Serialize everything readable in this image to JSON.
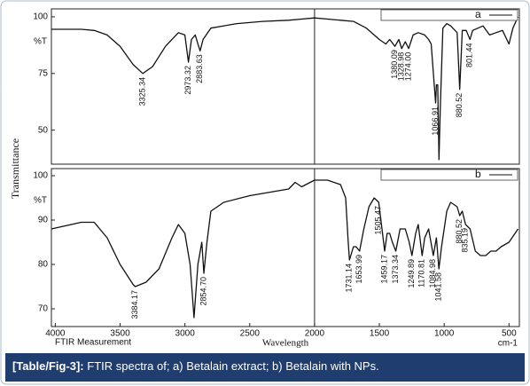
{
  "shared_ylabel": "Transmittance",
  "caption": {
    "label": "[Table/Fig-3]:",
    "text": " FTIR spectra of; a) Betalain extract; b) Betalain with NPs."
  },
  "chart_data": [
    {
      "type": "line",
      "ylabel": "%T",
      "xlim": [
        4030,
        420
      ],
      "ylim": [
        35,
        103.5
      ],
      "yticks": [
        50,
        75,
        100
      ],
      "vline": 2000,
      "x": [
        4030,
        3800,
        3700,
        3600,
        3500,
        3400,
        3325,
        3250,
        3150,
        3050,
        3000,
        2973,
        2950,
        2920,
        2900,
        2883,
        2860,
        2800,
        2600,
        2400,
        2200,
        2100,
        2000,
        1900,
        1800,
        1700,
        1600,
        1500,
        1450,
        1420,
        1380,
        1350,
        1328,
        1300,
        1274,
        1240,
        1200,
        1150,
        1120,
        1100,
        1066,
        1060,
        1050,
        1040,
        1030,
        1010,
        980,
        950,
        900,
        880,
        860,
        830,
        801,
        780,
        700,
        650,
        600,
        550,
        500,
        470,
        430
      ],
      "series": [
        {
          "name": "a",
          "color": "#111111",
          "values": [
            94.5,
            94.5,
            94,
            92,
            87,
            79,
            75,
            78,
            87,
            93,
            92,
            80,
            90,
            92,
            88,
            85,
            90,
            95,
            97,
            98,
            98.5,
            99,
            99.5,
            99,
            98.5,
            98,
            95,
            90,
            88,
            90,
            87,
            90,
            86,
            89,
            86,
            92,
            93,
            92,
            90,
            88,
            62,
            70,
            70,
            37,
            60,
            95,
            97,
            96,
            93,
            68,
            94,
            94,
            90,
            94,
            96,
            92,
            93,
            94,
            88,
            95,
            100
          ]
        }
      ],
      "annotations": [
        {
          "label": "3325.34",
          "x": 3325.34,
          "y": 75
        },
        {
          "label": "2973.32",
          "x": 2973.32,
          "y": 80
        },
        {
          "label": "2883.63",
          "x": 2883.63,
          "y": 85
        },
        {
          "label": "1380.09",
          "x": 1380.09,
          "y": 87
        },
        {
          "label": "1328.98",
          "x": 1328.98,
          "y": 86
        },
        {
          "label": "1274.00",
          "x": 1274.0,
          "y": 86
        },
        {
          "label": "1066.91",
          "x": 1066.91,
          "y": 62
        },
        {
          "label": "880.52",
          "x": 880.52,
          "y": 68
        },
        {
          "label": "801.44",
          "x": 801.44,
          "y": 90
        }
      ]
    },
    {
      "type": "line",
      "ylabel": "%T",
      "xlim": [
        4030,
        420
      ],
      "ylim": [
        66,
        101.6
      ],
      "yticks": [
        70,
        80,
        90,
        100
      ],
      "vline": 2000,
      "xticks": [
        4000,
        3500,
        3000,
        2500,
        2000,
        1500,
        1000,
        500
      ],
      "xlabel_left": "FTIR Measurement",
      "xlabel": "Wavelength",
      "xlabel_right": "cm-1",
      "x": [
        4030,
        3800,
        3700,
        3600,
        3500,
        3400,
        3384,
        3300,
        3200,
        3100,
        3050,
        3000,
        2960,
        2930,
        2900,
        2870,
        2854,
        2830,
        2800,
        2700,
        2500,
        2300,
        2200,
        2150,
        2100,
        2000,
        1900,
        1800,
        1760,
        1740,
        1731,
        1700,
        1680,
        1653,
        1620,
        1580,
        1540,
        1505,
        1480,
        1459,
        1440,
        1420,
        1400,
        1373,
        1340,
        1300,
        1270,
        1249,
        1220,
        1200,
        1170,
        1150,
        1120,
        1084,
        1060,
        1041,
        1020,
        980,
        950,
        900,
        880,
        860,
        835,
        800,
        760,
        720,
        680,
        640,
        600,
        560,
        500,
        430
      ],
      "series": [
        {
          "name": "b",
          "color": "#111111",
          "values": [
            88,
            89.5,
            89.5,
            86,
            80,
            75.5,
            75,
            76,
            79,
            86,
            89,
            87,
            80,
            68,
            80,
            85,
            78,
            85,
            92,
            94,
            95.5,
            96.5,
            97,
            98.5,
            97.5,
            99,
            99,
            98,
            95,
            85,
            81,
            84,
            84,
            83,
            88,
            93,
            95,
            94,
            88,
            83,
            87,
            87,
            85,
            83,
            88,
            88,
            85,
            82,
            87,
            89,
            82,
            86,
            88,
            82,
            86,
            79,
            84,
            92,
            94,
            93,
            91,
            92,
            89,
            88,
            83,
            82,
            82,
            83,
            83,
            84,
            85,
            88
          ]
        }
      ],
      "annotations": [
        {
          "label": "3384.17",
          "x": 3384.17,
          "y": 75
        },
        {
          "label": "2854.70",
          "x": 2854.7,
          "y": 78
        },
        {
          "label": "1731.14",
          "x": 1731.14,
          "y": 81
        },
        {
          "label": "1653.99",
          "x": 1653.99,
          "y": 83
        },
        {
          "label": "1505.47",
          "x": 1505.47,
          "y": 94
        },
        {
          "label": "1459.17",
          "x": 1459.17,
          "y": 83
        },
        {
          "label": "1373.34",
          "x": 1373.34,
          "y": 83
        },
        {
          "label": "1249.89",
          "x": 1249.89,
          "y": 82
        },
        {
          "label": "1170.81",
          "x": 1170.81,
          "y": 82
        },
        {
          "label": "1084.98",
          "x": 1084.98,
          "y": 82
        },
        {
          "label": "1041.58",
          "x": 1041.58,
          "y": 79
        },
        {
          "label": "880.52",
          "x": 880.52,
          "y": 91
        },
        {
          "label": "835.19",
          "x": 835.19,
          "y": 89
        }
      ]
    }
  ]
}
